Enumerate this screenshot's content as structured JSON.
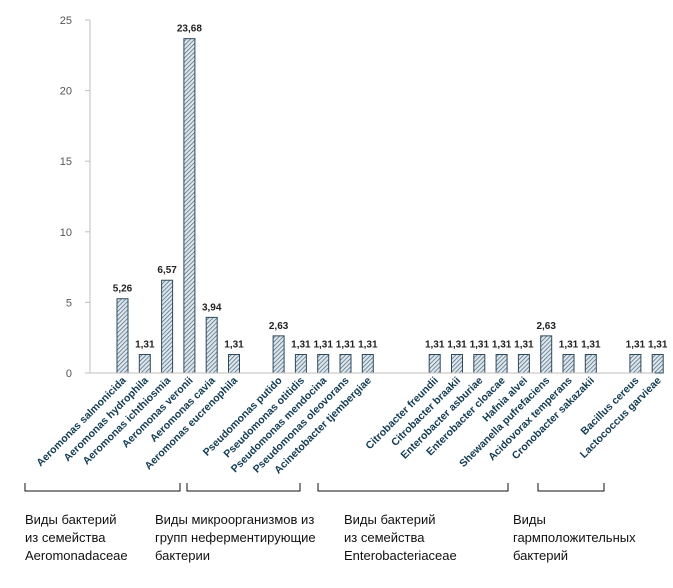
{
  "chart_data": {
    "type": "bar",
    "title": "",
    "xlabel": "",
    "ylabel": "",
    "ylim": [
      0,
      25
    ],
    "yticks": [
      0,
      5,
      10,
      15,
      20,
      25
    ],
    "grid": false,
    "legend": "none",
    "colors": {
      "bar_fill": "#dde7ee",
      "bar_hatch": "#4a6275",
      "bar_stroke": "#2f4a5c",
      "axis": "#bfbfbf",
      "label_text": "#123b52"
    },
    "categories": [
      "Aeromonas salmonicida",
      "Aeromonas hydrophila",
      "Aeromonas ichthiosmia",
      "Aeromonas veronii",
      "Aeromonas cavia",
      "Aeromonas eucrenophila",
      "",
      "Pseudomonas putido",
      "Pseudomonas otitidis",
      "Pseudomonas mendocina",
      "Pseudomonas oleovorans",
      "Acinetobacter tjembergiae",
      "",
      "",
      "Citrobacter  freundii",
      "Citrobacter braakii",
      "Enterobacter asburiae",
      "Enterobacter cloacae",
      "Hafnia alvei",
      "Shewanella pufrefaciens",
      "Acidovorax temperans",
      "Cronobacter sakazakii",
      "",
      "Bacillus cereus",
      "Lactococcus garvieae"
    ],
    "values": [
      5.26,
      1.31,
      6.57,
      23.68,
      3.94,
      1.31,
      null,
      2.63,
      1.31,
      1.31,
      1.31,
      1.31,
      null,
      null,
      1.31,
      1.31,
      1.31,
      1.31,
      1.31,
      2.63,
      1.31,
      1.31,
      null,
      1.31,
      1.31
    ],
    "data_labels": [
      "5,26",
      "1,31",
      "6,57",
      "23,68",
      "3,94",
      "1,31",
      "",
      "2,63",
      "1,31",
      "1,31",
      "1,31",
      "1,31",
      "",
      "",
      "1,31",
      "1,31",
      "1,31",
      "1,31",
      "1,31",
      "2,63",
      "1,31",
      "1,31",
      "",
      "1,31",
      "1,31"
    ]
  },
  "groups": [
    {
      "lines": [
        "Виды бактерий",
        "из семейства",
        "Aeromonadaceae"
      ]
    },
    {
      "lines": [
        "Виды микроорганизмов из",
        "групп неферментирующие",
        "бактерии"
      ]
    },
    {
      "lines": [
        "Виды бактерий",
        "из семейства",
        "Enterobacteriaceae"
      ]
    },
    {
      "lines": [
        "Виды",
        "гармположительных",
        "бактерий"
      ]
    }
  ]
}
